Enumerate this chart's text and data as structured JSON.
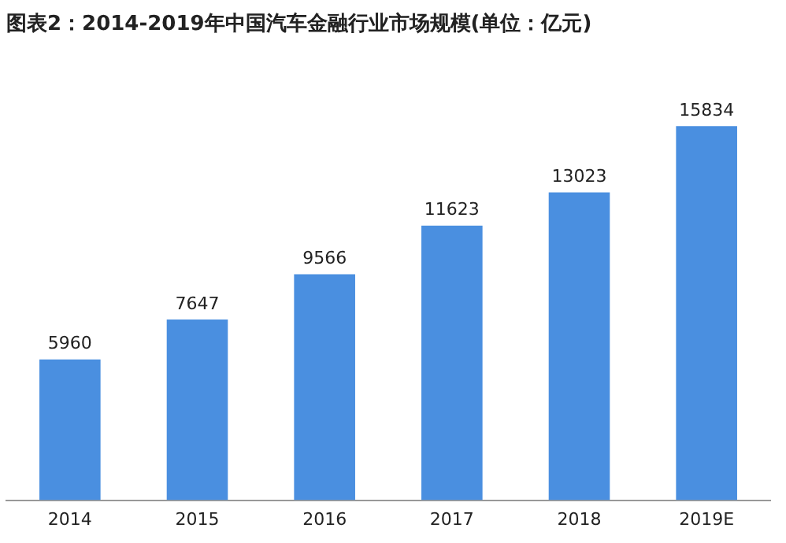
{
  "chart_data": {
    "type": "bar",
    "title": "图表2：2014-2019年中国汽车金融行业市场规模(单位：亿元)",
    "categories": [
      "2014",
      "2015",
      "2016",
      "2017",
      "2018",
      "2019E"
    ],
    "values": [
      5960,
      7647,
      9566,
      11623,
      13023,
      15834
    ],
    "color": "#4a8fe0",
    "data_labels": true,
    "grid": false,
    "legend": false
  }
}
